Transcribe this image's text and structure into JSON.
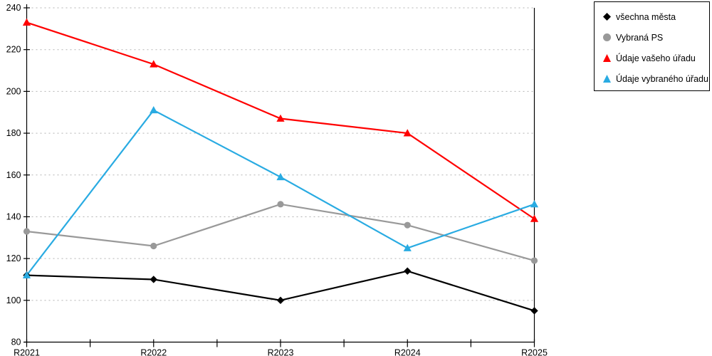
{
  "chart_data": {
    "type": "line",
    "title": "",
    "xlabel": "",
    "ylabel": "",
    "categories": [
      "R2021",
      "R2022",
      "R2023",
      "R2024",
      "R2025"
    ],
    "series": [
      {
        "name": "všechna města",
        "color": "#000000",
        "marker": "diamond",
        "values": [
          112,
          110,
          100,
          114,
          95
        ]
      },
      {
        "name": "Vybraná PS",
        "color": "#999999",
        "marker": "circle",
        "values": [
          133,
          126,
          146,
          136,
          119
        ]
      },
      {
        "name": "Údaje vašeho úřadu",
        "color": "#ff0000",
        "marker": "triangle",
        "values": [
          233,
          213,
          187,
          180,
          139
        ]
      },
      {
        "name": "Údaje vybraného úřadu",
        "color": "#29abe2",
        "marker": "triangle",
        "values": [
          112,
          191,
          159,
          125,
          146
        ]
      }
    ],
    "ylim": [
      80,
      240
    ],
    "y_ticks": [
      80,
      100,
      120,
      140,
      160,
      180,
      200,
      220,
      240
    ],
    "grid": "horizontal-dashed",
    "grid_color": "#b3b3b3",
    "axis_color": "#000000",
    "legend_position": "top-right"
  }
}
